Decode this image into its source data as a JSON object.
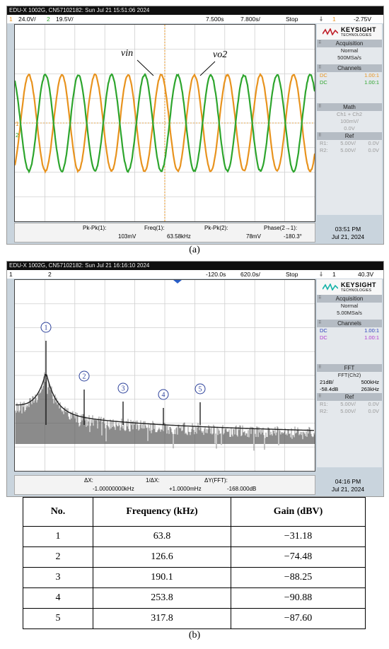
{
  "panel_a": {
    "title": "EDU-X 1002G, CN57102182: Sun Jul 21 15:51:06 2024",
    "ch1_num": "1",
    "ch1_scale": "24.0V/",
    "ch2_num": "2",
    "ch2_scale": "19.5V/",
    "time_delay": "7.500s",
    "time_scale": "7.800s/",
    "run_state": "Stop",
    "trig_num": "1",
    "trig_level": "-2.75V",
    "label_vin": "vin",
    "label_vo2": "vo2",
    "brand": "KEYSIGHT",
    "brand_sub": "TECHNOLOGIES",
    "acq_header": "Acquisition",
    "acq_mode": "Normal",
    "acq_rate": "500MSa/s",
    "ch_header": "Channels",
    "ch1_coupling": "DC",
    "ch1_probe": "1.00:1",
    "ch2_coupling": "DC",
    "ch2_probe": "1.00:1",
    "math_header": "Math",
    "math_fn": "Ch1 + Ch2",
    "math_scale": "100mV/",
    "math_offset": "0.0V",
    "ref_header": "Ref",
    "ref1_label": "R1:",
    "ref1_scale": "5.00V/",
    "ref1_offset": "0.0V",
    "ref2_label": "R2:",
    "ref2_scale": "5.00V/",
    "ref2_offset": "0.0V",
    "m1_label": "Pk-Pk(1):",
    "m1_value": "103mV",
    "m2_label": "Freq(1):",
    "m2_value": "63.58kHz",
    "m3_label": "Pk-Pk(2):",
    "m3_value": "78mV",
    "m4_label": "Phase(2→1):",
    "m4_value": "-180.3°",
    "clock_time": "03:51 PM",
    "clock_date": "Jul 21, 2024",
    "color_ch1": "#e8931e",
    "color_ch2": "#2da52d"
  },
  "caption_a": "(a)",
  "panel_b": {
    "title": "EDU-X 1002G, CN57102182: Sun Jul 21 16:16:10 2024",
    "ch1_num": "1",
    "ch2_num": "2",
    "time_delay": "-120.0s",
    "time_scale": "620.0s/",
    "run_state": "Stop",
    "trig_num": "1",
    "trig_level": "40.3V",
    "marker_labels": [
      "1",
      "2",
      "3",
      "4",
      "5"
    ],
    "brand": "KEYSIGHT",
    "brand_sub": "TECHNOLOGIES",
    "acq_header": "Acquisition",
    "acq_mode": "Normal",
    "acq_rate": "5.00MSa/s",
    "ch_header": "Channels",
    "ch1_coupling": "DC",
    "ch1_probe": "1.00:1",
    "ch2_coupling": "DC",
    "ch2_probe": "1.00:1",
    "fft_header": "FFT",
    "fft_src": "FFT(Ch2)",
    "fft_scale": "21dB/",
    "fft_span": "500kHz",
    "fft_offset": "-58.4dB",
    "fft_center": "263kHz",
    "ref_header": "Ref",
    "ref1_label": "R1:",
    "ref1_scale": "5.00V/",
    "ref1_offset": "0.0V",
    "ref2_label": "R2:",
    "ref2_scale": "5.00V/",
    "ref2_offset": "0.0V",
    "m1_label": "ΔX:",
    "m1_value": "-1.00000000kHz",
    "m2_label": "1/ΔX:",
    "m2_value": "+1.0000mHz",
    "m3_label": "ΔY(FFT):",
    "m3_value": "-168.000dB",
    "clock_time": "04:16 PM",
    "clock_date": "Jul 21, 2024"
  },
  "caption_b": "(b)",
  "table": {
    "headers": [
      "No.",
      "Frequency (kHz)",
      "Gain (dBV)"
    ],
    "rows": [
      [
        "1",
        "63.8",
        "−31.18"
      ],
      [
        "2",
        "126.6",
        "−74.48"
      ],
      [
        "3",
        "190.1",
        "−88.25"
      ],
      [
        "4",
        "253.8",
        "−90.88"
      ],
      [
        "5",
        "317.8",
        "−87.60"
      ]
    ]
  }
}
